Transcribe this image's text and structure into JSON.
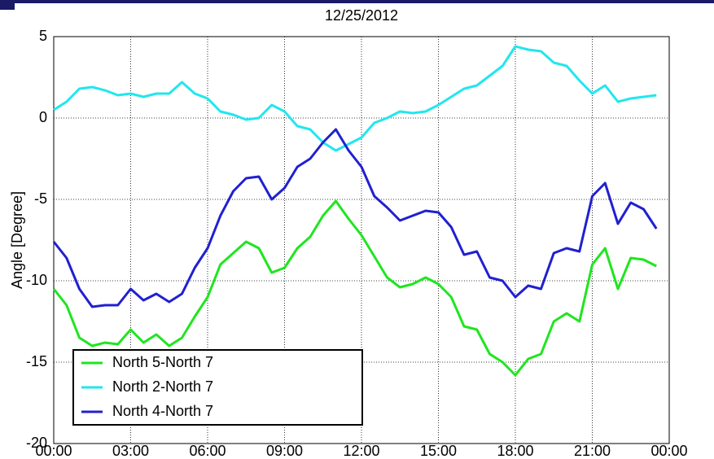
{
  "chart_data": {
    "type": "line",
    "title": "12/25/2012",
    "y_label": "Angle [Degree]",
    "x": [
      0,
      0.5,
      1,
      1.5,
      2,
      2.5,
      3,
      3.5,
      4,
      4.5,
      5,
      5.5,
      6,
      6.5,
      7,
      7.5,
      8,
      8.5,
      9,
      9.5,
      10,
      10.5,
      11,
      11.5,
      12,
      12.5,
      13,
      13.5,
      14,
      14.5,
      15,
      15.5,
      16,
      16.5,
      17,
      17.5,
      18,
      18.5,
      19,
      19.5,
      20,
      20.5,
      21,
      21.5,
      22,
      22.5,
      23,
      23.5
    ],
    "series": [
      {
        "name": "North 5-North 7",
        "color": "#1ee61e",
        "values": [
          -10.5,
          -11.5,
          -13.5,
          -14.0,
          -13.8,
          -13.9,
          -13.0,
          -13.8,
          -13.3,
          -14.0,
          -13.5,
          -12.2,
          -11.0,
          -9.0,
          -8.3,
          -7.6,
          -8.0,
          -9.5,
          -9.2,
          -8.0,
          -7.3,
          -6.0,
          -5.1,
          -6.2,
          -7.2,
          -8.5,
          -9.8,
          -10.4,
          -10.2,
          -9.8,
          -10.2,
          -11.0,
          -12.8,
          -13.0,
          -14.5,
          -15.0,
          -15.8,
          -14.8,
          -14.5,
          -12.5,
          -12.0,
          -12.5,
          -9.0,
          -8.0,
          -10.5,
          -8.6,
          -8.7,
          -9.1
        ]
      },
      {
        "name": "North 2-North 7",
        "color": "#22e6ee",
        "values": [
          0.5,
          1.0,
          1.8,
          1.9,
          1.7,
          1.4,
          1.5,
          1.3,
          1.5,
          1.5,
          2.2,
          1.5,
          1.2,
          0.4,
          0.2,
          -0.1,
          0.0,
          0.8,
          0.4,
          -0.5,
          -0.7,
          -1.5,
          -2.0,
          -1.6,
          -1.2,
          -0.3,
          0.0,
          0.4,
          0.3,
          0.4,
          0.8,
          1.3,
          1.8,
          2.0,
          2.6,
          3.2,
          4.4,
          4.2,
          4.1,
          3.4,
          3.2,
          2.3,
          1.5,
          2.0,
          1.0,
          1.2,
          1.3,
          1.4
        ]
      },
      {
        "name": "North 4-North 7",
        "color": "#2020d0",
        "values": [
          -7.6,
          -8.6,
          -10.5,
          -11.6,
          -11.5,
          -11.5,
          -10.5,
          -11.2,
          -10.8,
          -11.3,
          -10.8,
          -9.2,
          -8.0,
          -6.0,
          -4.5,
          -3.7,
          -3.6,
          -5.0,
          -4.3,
          -3.0,
          -2.5,
          -1.5,
          -0.7,
          -2.0,
          -3.0,
          -4.8,
          -5.5,
          -6.3,
          -6.0,
          -5.7,
          -5.8,
          -6.7,
          -8.4,
          -8.2,
          -9.8,
          -10.0,
          -11.0,
          -10.3,
          -10.5,
          -8.3,
          -8.0,
          -8.2,
          -4.8,
          -4.0,
          -6.5,
          -5.2,
          -5.6,
          -6.8
        ]
      }
    ],
    "xlim": [
      0,
      24
    ],
    "xticks": [
      {
        "value": 0,
        "label": "00:00"
      },
      {
        "value": 3,
        "label": "03:00"
      },
      {
        "value": 6,
        "label": "06:00"
      },
      {
        "value": 9,
        "label": "09:00"
      },
      {
        "value": 12,
        "label": "12:00"
      },
      {
        "value": 15,
        "label": "15:00"
      },
      {
        "value": 18,
        "label": "18:00"
      },
      {
        "value": 21,
        "label": "21:00"
      },
      {
        "value": 24,
        "label": "00:00"
      }
    ],
    "ylim": [
      -20,
      5
    ],
    "yticks": [
      -20,
      -15,
      -10,
      -5,
      0,
      5
    ],
    "grid": true,
    "legend": "lower left"
  }
}
